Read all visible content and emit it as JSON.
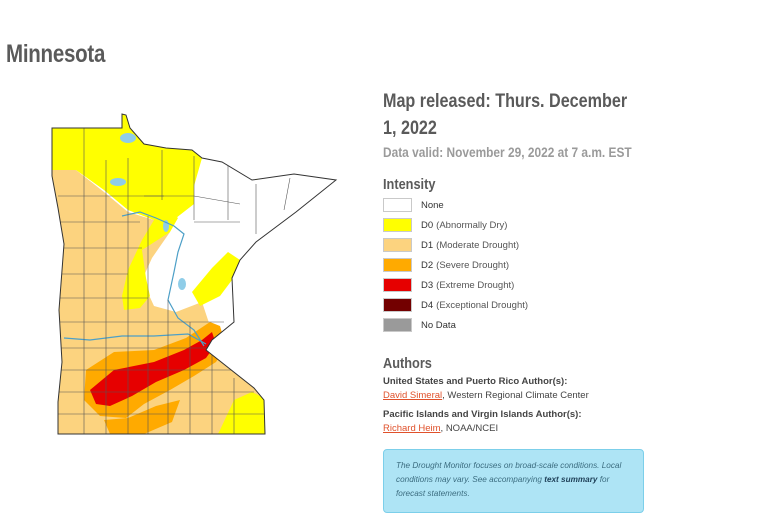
{
  "page": {
    "title": "Minnesota"
  },
  "map": {
    "fill_colors": {
      "none": "#ffffff",
      "d0": "#ffff00",
      "d1": "#fcd37f",
      "d2": "#ffaa00",
      "d3": "#e60000",
      "d4": "#730000",
      "no_data": "#9a9a9a",
      "water": "#8fcde8",
      "rivers": "#4c9fc7",
      "county_lines": "#555555"
    }
  },
  "info": {
    "released": "Map released: Thurs. December 1, 2022",
    "valid": "Data valid: November 29, 2022 at 7 a.m. EST"
  },
  "legend": {
    "heading": "Intensity",
    "items": [
      {
        "code": "None",
        "desc": "",
        "color": "#ffffff"
      },
      {
        "code": "D0",
        "desc": "(Abnormally Dry)",
        "color": "#ffff00"
      },
      {
        "code": "D1",
        "desc": "(Moderate Drought)",
        "color": "#fcd37f"
      },
      {
        "code": "D2",
        "desc": "(Severe Drought)",
        "color": "#ffaa00"
      },
      {
        "code": "D3",
        "desc": "(Extreme Drought)",
        "color": "#e60000"
      },
      {
        "code": "D4",
        "desc": "(Exceptional Drought)",
        "color": "#730000"
      },
      {
        "code": "No Data",
        "desc": "",
        "color": "#9a9a9a"
      }
    ]
  },
  "authors": {
    "heading": "Authors",
    "us_label": "United States and Puerto Rico Author(s):",
    "us_name": "David Simeral",
    "us_org": ", Western Regional Climate Center",
    "pi_label": "Pacific Islands and Virgin Islands Author(s):",
    "pi_name": "Richard Heim",
    "pi_org": ", NOAA/NCEI"
  },
  "note": {
    "text_before": "The Drought Monitor focuses on broad-scale conditions. Local conditions may vary. See accompanying ",
    "link_text": "text summary",
    "text_after": " for forecast statements."
  }
}
